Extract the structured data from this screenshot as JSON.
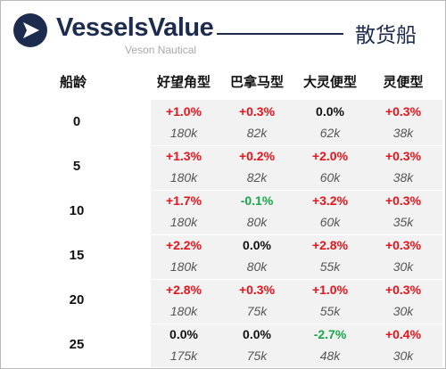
{
  "header": {
    "brand": "VesselsValue",
    "sub": "Veson Nautical",
    "title": "散货船"
  },
  "colors": {
    "navy": "#1d2b4f",
    "positive": "#e8141b",
    "negative": "#1aa64a",
    "neutral": "#111111"
  },
  "chart_data": {
    "type": "table",
    "row_header_label": "船龄",
    "columns": [
      "好望角型",
      "巴拿马型",
      "大灵便型",
      "灵便型"
    ],
    "rows": [
      {
        "age": "0",
        "pct": [
          "+1.0%",
          "+0.3%",
          "0.0%",
          "+0.3%"
        ],
        "value": [
          "180k",
          "82k",
          "62k",
          "38k"
        ]
      },
      {
        "age": "5",
        "pct": [
          "+1.3%",
          "+0.2%",
          "+2.0%",
          "+0.3%"
        ],
        "value": [
          "180k",
          "82k",
          "60k",
          "38k"
        ]
      },
      {
        "age": "10",
        "pct": [
          "+1.7%",
          "-0.1%",
          "+3.2%",
          "+0.3%"
        ],
        "value": [
          "180k",
          "80k",
          "60k",
          "35k"
        ]
      },
      {
        "age": "15",
        "pct": [
          "+2.2%",
          "0.0%",
          "+2.8%",
          "+0.3%"
        ],
        "value": [
          "180k",
          "80k",
          "55k",
          "30k"
        ]
      },
      {
        "age": "20",
        "pct": [
          "+2.8%",
          "+0.3%",
          "+1.0%",
          "+0.3%"
        ],
        "value": [
          "180k",
          "75k",
          "55k",
          "30k"
        ]
      },
      {
        "age": "25",
        "pct": [
          "0.0%",
          "0.0%",
          "-2.7%",
          "+0.4%"
        ],
        "value": [
          "175k",
          "75k",
          "48k",
          "30k"
        ]
      }
    ]
  }
}
